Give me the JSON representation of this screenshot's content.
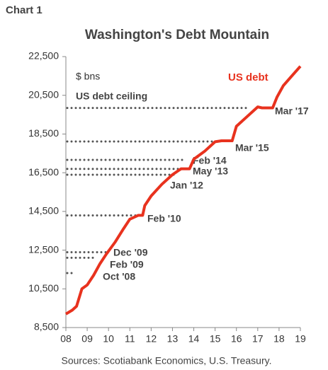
{
  "chart_data": {
    "type": "line",
    "label": "Chart 1",
    "title": "Washington's Debt Mountain",
    "ylabel": "$ bns",
    "source": "Sources: Scotiabank Economics, U.S. Treasury.",
    "xlim": [
      8,
      19
    ],
    "xticks": [
      {
        "value": 8,
        "label": "08"
      },
      {
        "value": 9,
        "label": "09"
      },
      10,
      11,
      12,
      13,
      14,
      15,
      16,
      17,
      18,
      19
    ],
    "ylim": [
      8500,
      22500
    ],
    "yticks": [
      {
        "value": 8500,
        "label": "8,500"
      },
      {
        "value": 10500,
        "label": "10,500"
      },
      {
        "value": 12500,
        "label": "12,500"
      },
      {
        "value": 14500,
        "label": "14,500"
      },
      {
        "value": 16500,
        "label": "16,500"
      },
      {
        "value": 18500,
        "label": "18,500"
      },
      {
        "value": 20500,
        "label": "20,500"
      },
      {
        "value": 22500,
        "label": "22,500"
      }
    ],
    "series": [
      {
        "name": "US debt",
        "color": "#e8321e",
        "x": [
          8.0,
          8.3,
          8.5,
          8.75,
          9.0,
          9.3,
          9.6,
          9.9,
          10.3,
          10.7,
          11.0,
          11.4,
          11.6,
          11.7,
          12.0,
          12.5,
          13.0,
          13.4,
          13.8,
          14.0,
          14.5,
          15.0,
          15.3,
          15.8,
          16.0,
          16.5,
          17.0,
          17.2,
          17.7,
          17.9,
          18.2,
          18.6,
          19.0
        ],
        "values": [
          9200,
          9400,
          9600,
          10500,
          10700,
          11200,
          11800,
          12300,
          12900,
          13600,
          14100,
          14300,
          14300,
          14800,
          15300,
          15900,
          16400,
          16700,
          16700,
          17200,
          17600,
          18100,
          18150,
          18150,
          18900,
          19400,
          19900,
          19850,
          19850,
          20400,
          21000,
          21500,
          22000
        ]
      }
    ],
    "ceiling_name": "US debt ceiling",
    "ceilings": [
      {
        "label": "Mar '17",
        "value": 19846,
        "x": 16.6
      },
      {
        "label": "Mar '15",
        "value": 18113,
        "x": 14.9
      },
      {
        "label": "Feb '14",
        "value": 17162,
        "x": 13.6
      },
      {
        "label": "May '13",
        "value": 16699,
        "x": 13.4
      },
      {
        "label": "Jan '12",
        "value": 16394,
        "x": 13.15
      },
      {
        "label": "Feb '10",
        "value": 14294,
        "x": 11.55
      },
      {
        "label": "Dec '09",
        "value": 12394,
        "x": 9.9
      },
      {
        "label": "Feb '09",
        "value": 12104,
        "x": 9.33
      },
      {
        "label": "Oct '08",
        "value": 11315,
        "x": 8.33
      }
    ],
    "ceiling_color": "#555555"
  }
}
